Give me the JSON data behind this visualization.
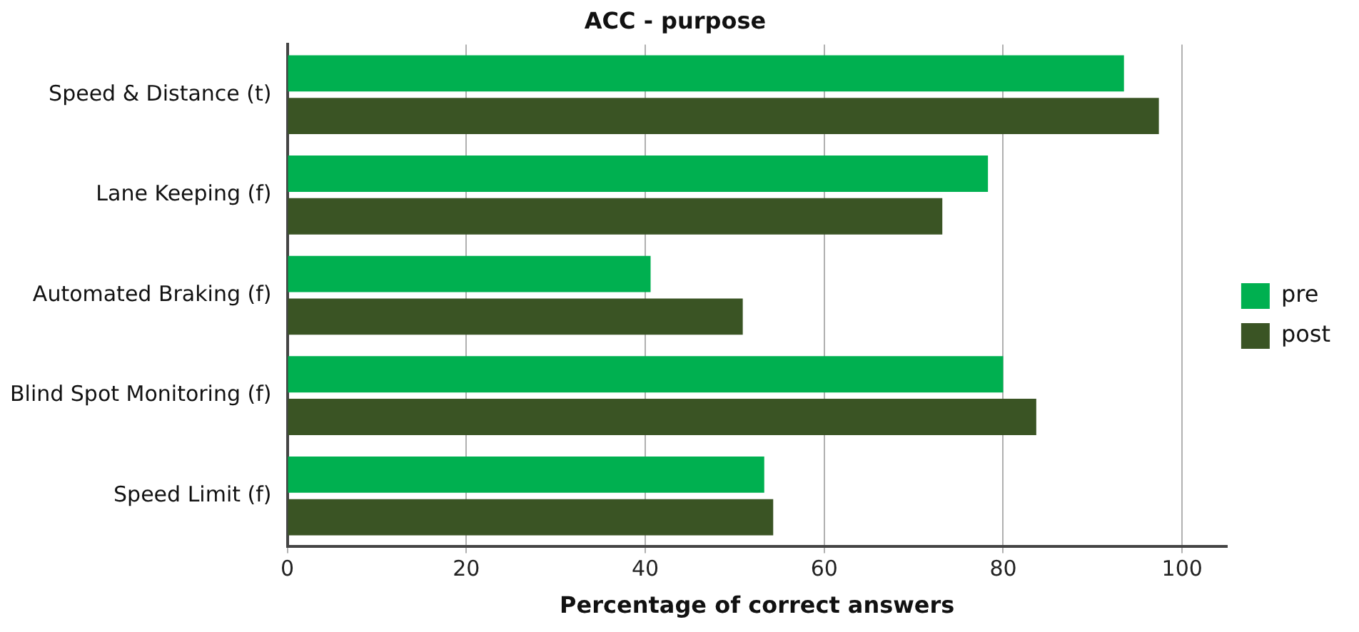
{
  "chart_data": {
    "type": "bar",
    "orientation": "horizontal",
    "title": "ACC - purpose",
    "xlabel": "Percentage of correct answers",
    "categories": [
      "Speed & Distance (t)",
      "Lane Keeping (f)",
      "Automated Braking (f)",
      "Blind Spot Monitoring (f)",
      "Speed Limit (f)"
    ],
    "series": [
      {
        "name": "pre",
        "color": "#00b050",
        "values": [
          93.5,
          78.3,
          40.6,
          80,
          53.3
        ]
      },
      {
        "name": "post",
        "color": "#3a5424",
        "values": [
          97.4,
          73.2,
          50.9,
          83.7,
          54.3
        ]
      }
    ],
    "xlim": [
      0,
      105
    ],
    "xticks": [
      0,
      20,
      40,
      60,
      80,
      100
    ],
    "grid": "x",
    "legend": "right"
  }
}
